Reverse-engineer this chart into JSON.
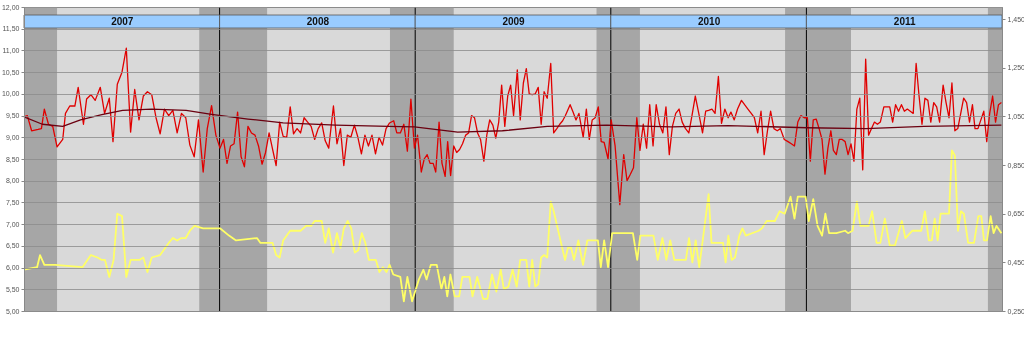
{
  "chart_data": {
    "type": "line",
    "xlim": [
      2007,
      2012
    ],
    "grid": "y",
    "xticks": [
      {
        "value": 2007.5,
        "label": "2007"
      },
      {
        "value": 2008.5,
        "label": "2008"
      },
      {
        "value": 2009.5,
        "label": "2009"
      },
      {
        "value": 2010.5,
        "label": "2010"
      },
      {
        "value": 2011.5,
        "label": "2011"
      }
    ],
    "ylim": [
      5,
      12
    ],
    "yticks": [
      {
        "value": 5,
        "label": "5,00"
      },
      {
        "value": 5.5,
        "label": "5,50"
      },
      {
        "value": 6,
        "label": "6,00"
      },
      {
        "value": 6.5,
        "label": "6,50"
      },
      {
        "value": 7,
        "label": "7,00"
      },
      {
        "value": 7.5,
        "label": "7,50"
      },
      {
        "value": 8,
        "label": "8,00"
      },
      {
        "value": 8.5,
        "label": "8,50"
      },
      {
        "value": 9,
        "label": "9,00"
      },
      {
        "value": 9.5,
        "label": "9,50"
      },
      {
        "value": 10,
        "label": "10,00"
      },
      {
        "value": 10.5,
        "label": "10,50"
      },
      {
        "value": 11,
        "label": "11,00"
      },
      {
        "value": 11.5,
        "label": "11,50"
      },
      {
        "value": 12,
        "label": "12,00"
      }
    ],
    "y2lim": [
      0.25,
      1.5
    ],
    "y2ticks": [
      {
        "value": 0.25,
        "label": "0,250"
      },
      {
        "value": 0.45,
        "label": "0,450"
      },
      {
        "value": 0.65,
        "label": "0,650"
      },
      {
        "value": 0.85,
        "label": "0,850"
      },
      {
        "value": 1.05,
        "label": "1,050"
      },
      {
        "value": 1.25,
        "label": "1,250"
      },
      {
        "value": 1.45,
        "label": "1,450"
      }
    ],
    "bands": [
      {
        "axis": "x",
        "from": 2007,
        "to": 2007.169,
        "color": "#a6a6a6"
      },
      {
        "axis": "x",
        "from": 2007.896,
        "to": 2008.243,
        "color": "#a6a6a6"
      },
      {
        "axis": "x",
        "from": 2008.871,
        "to": 2009.197,
        "color": "#a6a6a6"
      },
      {
        "axis": "x",
        "from": 2009.927,
        "to": 2010.149,
        "color": "#a6a6a6"
      },
      {
        "axis": "x",
        "from": 2010.891,
        "to": 2011.228,
        "color": "#a6a6a6"
      },
      {
        "axis": "x",
        "from": 2011.928,
        "to": 2012,
        "color": "#a6a6a6"
      }
    ],
    "ref_lines": [
      {
        "axis": "x",
        "value": 2008,
        "color": "#000000"
      },
      {
        "axis": "x",
        "value": 2009,
        "color": "#000000"
      },
      {
        "axis": "x",
        "value": 2010,
        "color": "#000000"
      },
      {
        "axis": "x",
        "value": 2011,
        "color": "#000000"
      }
    ],
    "series": [
      {
        "color": "#e00000",
        "x": [
          2007.0,
          2007.017,
          2007.039,
          2007.072,
          2007.089,
          2007.104,
          2007.125,
          2007.147,
          2007.169,
          2007.198,
          2007.212,
          2007.234,
          2007.26,
          2007.277,
          2007.304,
          2007.32,
          2007.342,
          2007.364,
          2007.39,
          2007.412,
          2007.436,
          2007.455,
          2007.477,
          2007.501,
          2007.523,
          2007.545,
          2007.566,
          2007.588,
          2007.61,
          2007.631,
          2007.653,
          2007.675,
          2007.696,
          2007.718,
          2007.74,
          2007.761,
          2007.783,
          2007.805,
          2007.827,
          2007.848,
          2007.87,
          2007.892,
          2007.916,
          2007.937,
          2007.959,
          2007.981,
          2008.002,
          2008.02,
          2008.038,
          2008.056,
          2008.074,
          2008.092,
          2008.11,
          2008.127,
          2008.145,
          2008.163,
          2008.181,
          2008.199,
          2008.217,
          2008.235,
          2008.253,
          2008.271,
          2008.289,
          2008.307,
          2008.325,
          2008.343,
          2008.361,
          2008.378,
          2008.396,
          2008.414,
          2008.432,
          2008.45,
          2008.468,
          2008.486,
          2008.504,
          2008.522,
          2008.54,
          2008.558,
          2008.582,
          2008.6,
          2008.618,
          2008.635,
          2008.653,
          2008.671,
          2008.689,
          2008.707,
          2008.725,
          2008.743,
          2008.761,
          2008.779,
          2008.797,
          2008.815,
          2008.833,
          2008.851,
          2008.869,
          2008.89,
          2008.906,
          2008.924,
          2008.942,
          2008.96,
          2008.978,
          2008.996,
          2009.012,
          2009.031,
          2009.046,
          2009.061,
          2009.076,
          2009.092,
          2009.105,
          2009.122,
          2009.137,
          2009.153,
          2009.166,
          2009.181,
          2009.197,
          2009.212,
          2009.227,
          2009.242,
          2009.258,
          2009.273,
          2009.288,
          2009.303,
          2009.319,
          2009.334,
          2009.351,
          2009.366,
          2009.381,
          2009.397,
          2009.412,
          2009.427,
          2009.442,
          2009.458,
          2009.473,
          2009.488,
          2009.503,
          2009.522,
          2009.537,
          2009.553,
          2009.568,
          2009.583,
          2009.598,
          2009.614,
          2009.629,
          2009.644,
          2009.659,
          2009.675,
          2009.693,
          2009.708,
          2009.724,
          2009.739,
          2009.754,
          2009.768,
          2009.792,
          2009.807,
          2009.822,
          2009.837,
          2009.859,
          2009.875,
          2009.89,
          2009.905,
          2009.92,
          2009.936,
          2009.951,
          2009.966,
          2009.986,
          2010.002,
          2010.022,
          2010.046,
          2010.066,
          2010.083,
          2010.1,
          2010.116,
          2010.133,
          2010.149,
          2010.166,
          2010.183,
          2010.199,
          2010.216,
          2010.232,
          2010.249,
          2010.266,
          2010.282,
          2010.299,
          2010.315,
          2010.332,
          2010.349,
          2010.365,
          2010.382,
          2010.399,
          2010.415,
          2010.432,
          2010.452,
          2010.469,
          2010.485,
          2010.5,
          2010.517,
          2010.533,
          2010.55,
          2010.566,
          2010.583,
          2010.6,
          2010.614,
          2010.631,
          2010.648,
          2010.668,
          2010.684,
          2010.701,
          2010.718,
          2010.734,
          2010.751,
          2010.768,
          2010.784,
          2010.801,
          2010.817,
          2010.834,
          2010.851,
          2010.867,
          2010.887,
          2010.906,
          2010.923,
          2010.939,
          2010.956,
          2010.972,
          2010.989,
          2011.005,
          2011.02,
          2011.035,
          2011.05,
          2011.065,
          2011.08,
          2011.095,
          2011.11,
          2011.125,
          2011.138,
          2011.153,
          2011.168,
          2011.183,
          2011.198,
          2011.213,
          2011.228,
          2011.243,
          2011.258,
          2011.273,
          2011.288,
          2011.303,
          2011.318,
          2011.333,
          2011.348,
          2011.363,
          2011.378,
          2011.396,
          2011.426,
          2011.441,
          2011.456,
          2011.471,
          2011.486,
          2011.501,
          2011.516,
          2011.531,
          2011.546,
          2011.561,
          2011.576,
          2011.591,
          2011.606,
          2011.621,
          2011.636,
          2011.651,
          2011.666,
          2011.681,
          2011.699,
          2011.714,
          2011.729,
          2011.744,
          2011.759,
          2011.774,
          2011.789,
          2011.804,
          2011.819,
          2011.834,
          2011.849,
          2011.862,
          2011.877,
          2011.892,
          2011.907,
          2011.922,
          2011.937,
          2011.952,
          2011.967,
          2011.982,
          2011.997
        ],
        "values": [
          9.47,
          9.5,
          9.15,
          9.18,
          9.2,
          9.65,
          9.3,
          9.25,
          8.78,
          8.95,
          9.55,
          9.72,
          9.72,
          10.15,
          9.3,
          9.88,
          9.98,
          9.85,
          10.15,
          9.55,
          9.9,
          8.9,
          10.22,
          10.5,
          11.05,
          9.12,
          10.1,
          9.4,
          9.95,
          10.05,
          9.98,
          9.45,
          9.08,
          9.65,
          9.5,
          9.62,
          9.1,
          9.55,
          9.45,
          8.82,
          8.55,
          9.4,
          8.2,
          9.2,
          9.73,
          9.05,
          8.75,
          8.95,
          8.4,
          8.8,
          8.85,
          9.58,
          8.55,
          8.32,
          9.25,
          9.1,
          9.05,
          8.8,
          8.38,
          8.65,
          9.1,
          8.72,
          8.35,
          9.35,
          9.02,
          9.0,
          9.7,
          9.08,
          9.2,
          9.1,
          9.45,
          9.35,
          9.25,
          8.95,
          9.2,
          9.33,
          8.92,
          8.75,
          9.72,
          8.85,
          9.2,
          8.35,
          9.05,
          9.0,
          9.28,
          9.0,
          8.62,
          9.05,
          8.8,
          9.05,
          8.62,
          9.0,
          8.82,
          9.2,
          9.33,
          9.38,
          9.1,
          9.1,
          9.3,
          8.68,
          9.88,
          8.75,
          9.05,
          8.2,
          8.5,
          8.6,
          8.4,
          8.4,
          8.2,
          9.35,
          8.4,
          8.1,
          8.9,
          8.12,
          8.8,
          8.65,
          8.72,
          8.85,
          9.05,
          9.1,
          9.5,
          9.45,
          9.1,
          8.95,
          8.45,
          9.05,
          9.4,
          9.28,
          8.98,
          9.35,
          10.2,
          9.25,
          9.95,
          10.2,
          9.5,
          10.55,
          9.4,
          10.25,
          10.58,
          10.0,
          9.98,
          10.0,
          10.15,
          9.3,
          10.05,
          9.9,
          10.7,
          9.1,
          9.2,
          9.3,
          9.38,
          9.5,
          9.75,
          9.58,
          9.4,
          9.55,
          9.0,
          9.65,
          8.95,
          9.4,
          9.45,
          9.7,
          8.9,
          8.88,
          8.5,
          9.4,
          8.8,
          7.45,
          8.6,
          8.0,
          8.15,
          8.3,
          9.45,
          8.7,
          9.3,
          8.75,
          9.75,
          8.8,
          9.75,
          9.3,
          9.1,
          9.7,
          8.6,
          9.25,
          9.55,
          9.65,
          9.35,
          9.2,
          9.1,
          9.5,
          9.95,
          9.5,
          9.1,
          9.6,
          9.62,
          9.65,
          9.55,
          10.4,
          9.32,
          9.65,
          9.45,
          9.58,
          9.4,
          9.65,
          9.85,
          9.75,
          9.65,
          9.55,
          9.45,
          9.1,
          9.6,
          8.6,
          9.15,
          9.6,
          9.2,
          9.15,
          9.2,
          8.95,
          8.9,
          8.85,
          8.8,
          9.35,
          9.5,
          9.45,
          9.45,
          8.45,
          9.4,
          9.42,
          9.2,
          8.95,
          8.15,
          8.75,
          9.15,
          8.7,
          8.6,
          8.95,
          8.95,
          8.9,
          8.6,
          8.85,
          8.45,
          9.65,
          9.9,
          8.25,
          10.8,
          9.05,
          9.2,
          9.35,
          9.3,
          9.35,
          9.7,
          9.7,
          9.35,
          9.75,
          9.6,
          9.75,
          9.6,
          9.65,
          9.6,
          9.55,
          10.7,
          9.95,
          9.3,
          9.9,
          9.85,
          9.35,
          9.8,
          9.7,
          9.35,
          10.2,
          9.8,
          9.45,
          10.25,
          9.15,
          9.2,
          9.55,
          9.9,
          9.8,
          9.35,
          9.75,
          9.2,
          9.2,
          9.4,
          9.6,
          8.9,
          9.55,
          9.95,
          9.35,
          9.75,
          9.8
        ]
      },
      {
        "color": "#6b0010",
        "x": [
          2007.0,
          2007.094,
          2007.198,
          2007.289,
          2007.398,
          2007.504,
          2007.653,
          2007.829,
          2007.959,
          2008.145,
          2008.325,
          2008.594,
          2008.863,
          2008.996,
          2009.217,
          2009.446,
          2009.675,
          2009.98,
          2010.308,
          2010.6,
          2011.005,
          2011.303,
          2011.602,
          2011.997
        ],
        "values": [
          9.47,
          9.3,
          9.25,
          9.4,
          9.52,
          9.62,
          9.65,
          9.62,
          9.53,
          9.42,
          9.33,
          9.28,
          9.25,
          9.24,
          9.12,
          9.15,
          9.25,
          9.28,
          9.24,
          9.27,
          9.22,
          9.2,
          9.25,
          9.28
        ]
      },
      {
        "color": "#ffff66",
        "axis": "y2",
        "x": [
          2007.0,
          2007.067,
          2007.082,
          2007.104,
          2007.159,
          2007.299,
          2007.342,
          2007.376,
          2007.398,
          2007.414,
          2007.436,
          2007.458,
          2007.477,
          2007.501,
          2007.523,
          2007.545,
          2007.59,
          2007.61,
          2007.631,
          2007.653,
          2007.696,
          2007.74,
          2007.761,
          2007.783,
          2007.805,
          2007.827,
          2007.848,
          2007.872,
          2007.916,
          2008.002,
          2008.048,
          2008.084,
          2008.191,
          2008.209,
          2008.271,
          2008.289,
          2008.307,
          2008.325,
          2008.361,
          2008.414,
          2008.442,
          2008.468,
          2008.486,
          2008.522,
          2008.54,
          2008.558,
          2008.58,
          2008.6,
          2008.618,
          2008.635,
          2008.655,
          2008.673,
          2008.691,
          2008.709,
          2008.727,
          2008.745,
          2008.763,
          2008.799,
          2008.817,
          2008.835,
          2008.853,
          2008.869,
          2008.888,
          2008.924,
          2008.942,
          2008.96,
          2008.984,
          2009.019,
          2009.042,
          2009.058,
          2009.08,
          2009.11,
          2009.134,
          2009.149,
          2009.164,
          2009.18,
          2009.202,
          2009.225,
          2009.241,
          2009.278,
          2009.293,
          2009.317,
          2009.347,
          2009.369,
          2009.393,
          2009.415,
          2009.437,
          2009.453,
          2009.476,
          2009.498,
          2009.519,
          2009.537,
          2009.568,
          2009.583,
          2009.598,
          2009.614,
          2009.629,
          2009.644,
          2009.659,
          2009.675,
          2009.693,
          2009.708,
          2009.766,
          2009.781,
          2009.797,
          2009.812,
          2009.834,
          2009.858,
          2009.88,
          2009.919,
          2009.934,
          2009.949,
          2009.966,
          2009.986,
          2010.007,
          2010.042,
          2010.113,
          2010.135,
          2010.151,
          2010.218,
          2010.24,
          2010.264,
          2010.284,
          2010.304,
          2010.325,
          2010.341,
          2010.384,
          2010.4,
          2010.417,
          2010.434,
          2010.452,
          2010.47,
          2010.5,
          2010.515,
          2010.574,
          2010.587,
          2010.601,
          2010.618,
          2010.635,
          2010.657,
          2010.673,
          2010.69,
          2010.756,
          2010.773,
          2010.797,
          2010.839,
          2010.863,
          2010.889,
          2010.919,
          2010.939,
          2010.956,
          2010.996,
          2011.012,
          2011.035,
          2011.057,
          2011.08,
          2011.097,
          2011.116,
          2011.153,
          2011.198,
          2011.213,
          2011.236,
          2011.258,
          2011.276,
          2011.296,
          2011.318,
          2011.336,
          2011.359,
          2011.378,
          2011.401,
          2011.426,
          2011.453,
          2011.488,
          2011.506,
          2011.542,
          2011.587,
          2011.606,
          2011.626,
          2011.641,
          2011.656,
          2011.671,
          2011.686,
          2011.729,
          2011.744,
          2011.759,
          2011.775,
          2011.79,
          2011.805,
          2011.827,
          2011.857,
          2011.879,
          2011.894,
          2011.908,
          2011.923,
          2011.942,
          2011.957,
          2011.972,
          2011.997
        ],
        "values": [
          0.42,
          0.43,
          0.48,
          0.44,
          0.44,
          0.43,
          0.48,
          0.47,
          0.46,
          0.46,
          0.39,
          0.46,
          0.65,
          0.64,
          0.39,
          0.46,
          0.46,
          0.47,
          0.41,
          0.47,
          0.48,
          0.53,
          0.55,
          0.54,
          0.55,
          0.55,
          0.58,
          0.6,
          0.59,
          0.59,
          0.56,
          0.54,
          0.55,
          0.53,
          0.53,
          0.48,
          0.47,
          0.54,
          0.58,
          0.58,
          0.6,
          0.6,
          0.62,
          0.62,
          0.53,
          0.59,
          0.49,
          0.57,
          0.51,
          0.59,
          0.62,
          0.59,
          0.49,
          0.5,
          0.57,
          0.53,
          0.46,
          0.46,
          0.41,
          0.43,
          0.41,
          0.44,
          0.4,
          0.39,
          0.29,
          0.39,
          0.29,
          0.38,
          0.42,
          0.38,
          0.44,
          0.44,
          0.34,
          0.39,
          0.31,
          0.4,
          0.31,
          0.31,
          0.39,
          0.39,
          0.31,
          0.39,
          0.3,
          0.3,
          0.4,
          0.33,
          0.42,
          0.34,
          0.35,
          0.42,
          0.35,
          0.46,
          0.46,
          0.35,
          0.46,
          0.35,
          0.36,
          0.47,
          0.48,
          0.47,
          0.7,
          0.66,
          0.46,
          0.51,
          0.51,
          0.46,
          0.54,
          0.44,
          0.54,
          0.54,
          0.54,
          0.43,
          0.54,
          0.43,
          0.57,
          0.57,
          0.57,
          0.46,
          0.56,
          0.56,
          0.46,
          0.55,
          0.46,
          0.54,
          0.46,
          0.46,
          0.46,
          0.55,
          0.45,
          0.54,
          0.43,
          0.54,
          0.73,
          0.53,
          0.53,
          0.45,
          0.56,
          0.46,
          0.47,
          0.56,
          0.59,
          0.56,
          0.58,
          0.59,
          0.62,
          0.62,
          0.66,
          0.65,
          0.72,
          0.63,
          0.72,
          0.72,
          0.62,
          0.71,
          0.6,
          0.56,
          0.65,
          0.57,
          0.57,
          0.58,
          0.57,
          0.58,
          0.7,
          0.6,
          0.6,
          0.6,
          0.66,
          0.53,
          0.53,
          0.63,
          0.52,
          0.52,
          0.62,
          0.55,
          0.58,
          0.58,
          0.66,
          0.54,
          0.54,
          0.63,
          0.54,
          0.65,
          0.65,
          0.91,
          0.89,
          0.58,
          0.66,
          0.65,
          0.53,
          0.53,
          0.64,
          0.64,
          0.54,
          0.54,
          0.64,
          0.57,
          0.6,
          0.57
        ]
      }
    ]
  }
}
